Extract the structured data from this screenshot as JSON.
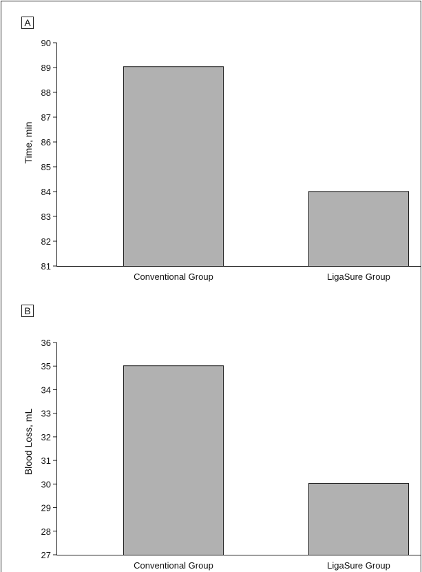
{
  "chart_data": [
    {
      "panel_label": "A",
      "type": "bar",
      "categories": [
        "Conventional Group",
        "LigaSure Group"
      ],
      "values": [
        89.05,
        84.02
      ],
      "title": "",
      "xlabel": "",
      "ylabel": "Time, min",
      "ylim": [
        81,
        90
      ],
      "yticks": [
        81,
        82,
        83,
        84,
        85,
        86,
        87,
        88,
        89,
        90
      ],
      "grid": false,
      "bar_color": "#b1b1b1"
    },
    {
      "panel_label": "B",
      "type": "bar",
      "categories": [
        "Conventional Group",
        "LigaSure Group"
      ],
      "values": [
        35.03,
        30.04
      ],
      "title": "",
      "xlabel": "",
      "ylabel": "Blood Loss, mL",
      "ylim": [
        27,
        36
      ],
      "yticks": [
        27,
        28,
        29,
        30,
        31,
        32,
        33,
        34,
        35,
        36
      ],
      "grid": false,
      "bar_color": "#b1b1b1"
    }
  ]
}
